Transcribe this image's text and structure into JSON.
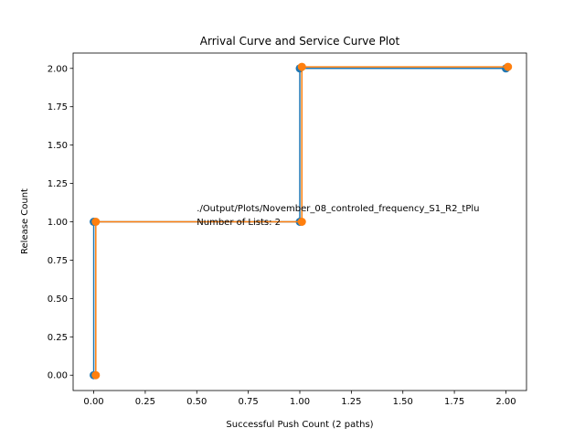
{
  "chart_data": {
    "type": "line",
    "title": "Arrival Curve and Service Curve Plot",
    "xlabel": "Successful Push Count (2 paths)",
    "ylabel": "Release Count",
    "xlim": [
      -0.1,
      2.1
    ],
    "ylim": [
      -0.1,
      2.1
    ],
    "xticks": [
      "0.00",
      "0.25",
      "0.50",
      "0.75",
      "1.00",
      "1.25",
      "1.50",
      "1.75",
      "2.00"
    ],
    "yticks": [
      "0.00",
      "0.25",
      "0.50",
      "0.75",
      "1.00",
      "1.25",
      "1.50",
      "1.75",
      "2.00"
    ],
    "grid": false,
    "series": [
      {
        "color": "#1f77b4",
        "x": [
          0,
          0,
          1,
          1,
          2
        ],
        "y": [
          0,
          1,
          1,
          2,
          2
        ]
      },
      {
        "color": "#ff7f0e",
        "x": [
          0.01,
          0.01,
          1.01,
          1.01,
          2.01
        ],
        "y": [
          0.0,
          1.0,
          1.0,
          2.01,
          2.01
        ]
      }
    ],
    "annotations": [
      {
        "text": "./Output/Plots/November_08_controled_frequency_S1_R2_tPlu",
        "x": 0.5,
        "y": 1.07
      },
      {
        "text": "Number of Lists: 2",
        "x": 0.5,
        "y": 0.98
      }
    ]
  }
}
